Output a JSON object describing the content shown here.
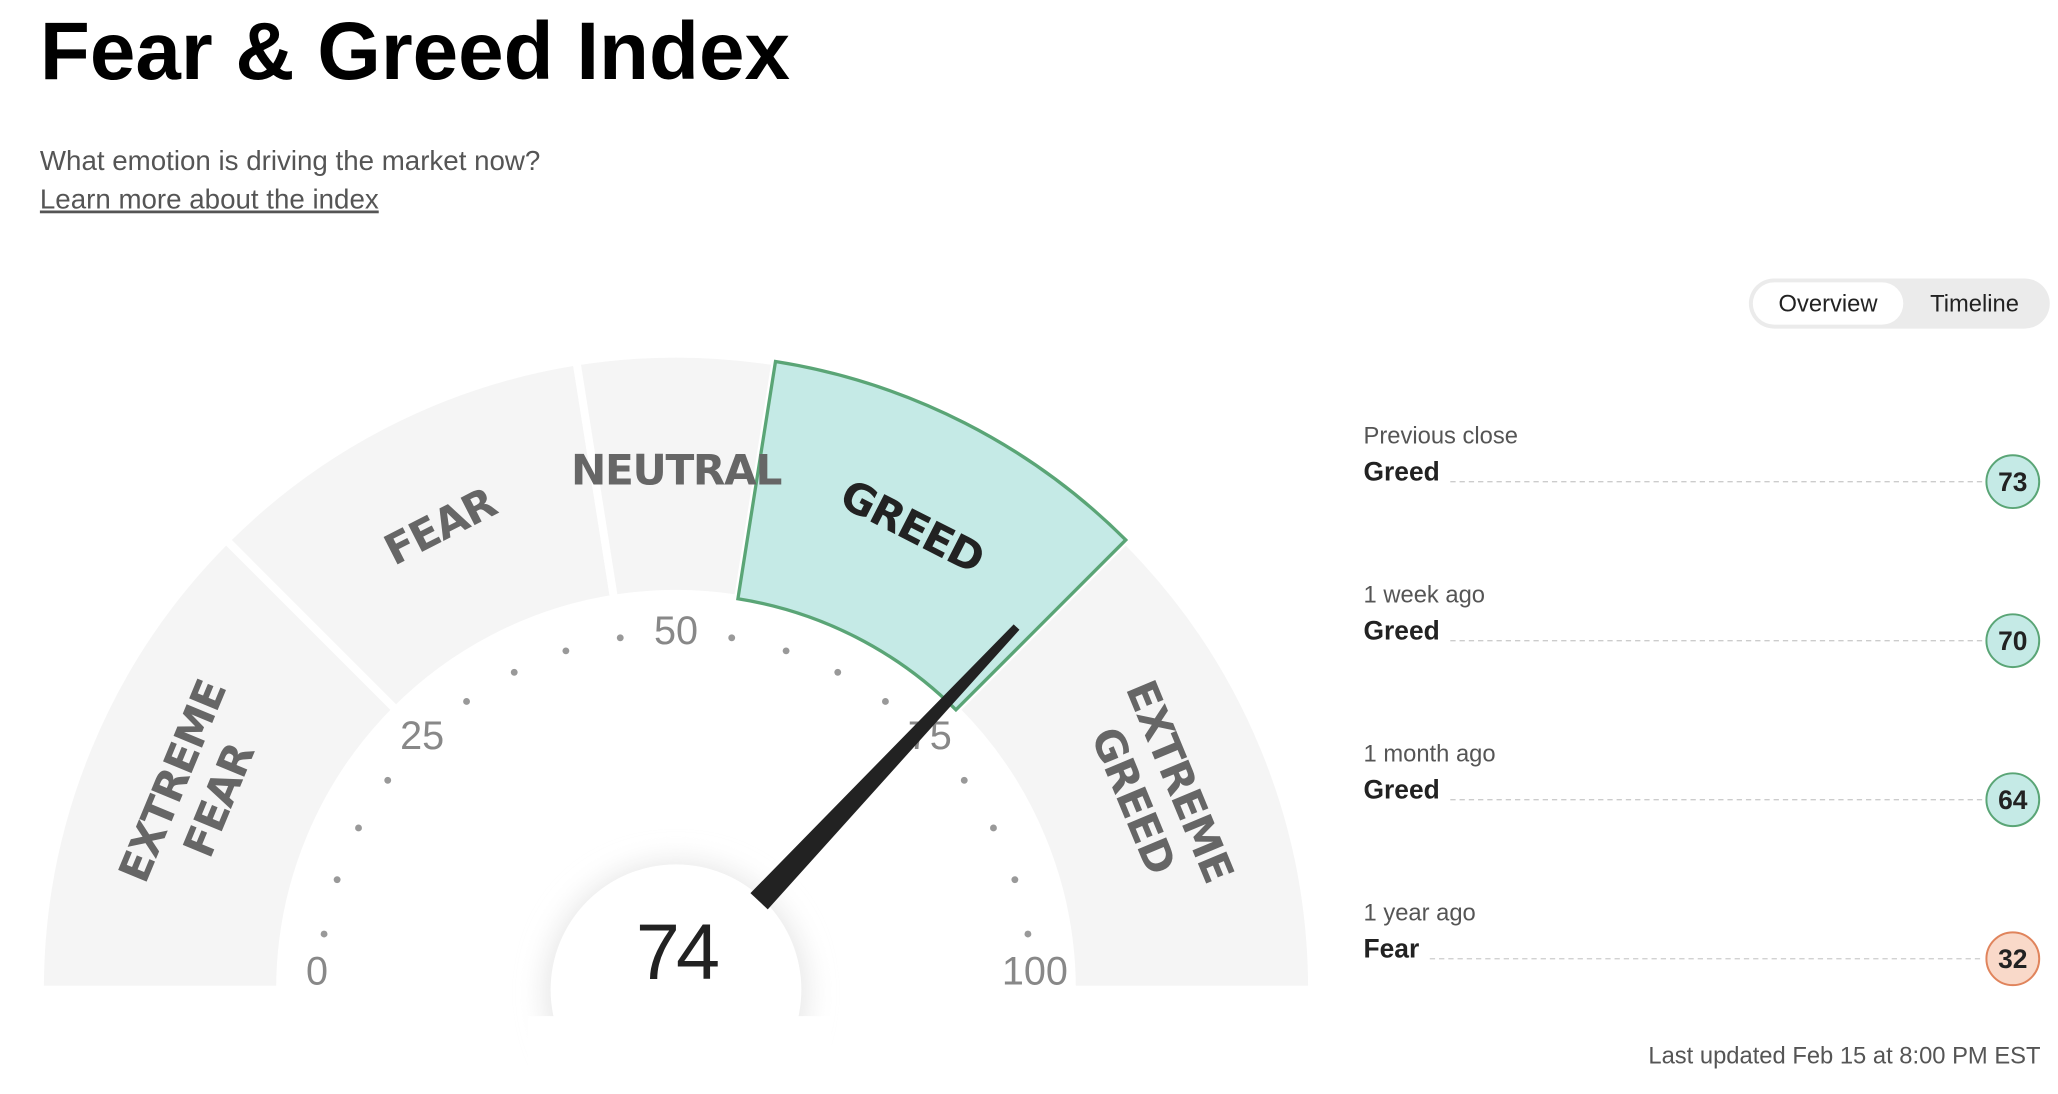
{
  "header": {
    "title": "Fear & Greed Index",
    "subtitle": "What emotion is driving the market now?",
    "link": "Learn more about the index"
  },
  "tabs": [
    "Overview",
    "Timeline"
  ],
  "gauge": {
    "value": 74,
    "range": [
      0,
      100
    ],
    "ticks": [
      0,
      25,
      50,
      75,
      100
    ],
    "segments": [
      {
        "lines": [
          "EXTREME",
          "FEAR"
        ],
        "range": [
          0,
          25
        ],
        "active": false
      },
      {
        "lines": [
          "FEAR"
        ],
        "range": [
          25,
          45
        ],
        "active": false
      },
      {
        "lines": [
          "NEUTRAL"
        ],
        "range": [
          45,
          55
        ],
        "active": false
      },
      {
        "lines": [
          "GREED"
        ],
        "range": [
          55,
          75
        ],
        "active": true
      },
      {
        "lines": [
          "EXTREME",
          "GREED"
        ],
        "range": [
          75,
          100
        ],
        "active": false
      }
    ]
  },
  "history": [
    {
      "when": "Previous close",
      "label": "Greed",
      "value": 73,
      "fill": "#c5eae6",
      "stroke": "#5aa576"
    },
    {
      "when": "1 week ago",
      "label": "Greed",
      "value": 70,
      "fill": "#c5eae6",
      "stroke": "#5aa576"
    },
    {
      "when": "1 month ago",
      "label": "Greed",
      "value": 64,
      "fill": "#c5eae6",
      "stroke": "#5aa576"
    },
    {
      "when": "1 year ago",
      "label": "Fear",
      "value": 32,
      "fill": "#f9d9c9",
      "stroke": "#e0845c"
    }
  ],
  "footer": "Last updated Feb 15 at 8:00 PM EST"
}
